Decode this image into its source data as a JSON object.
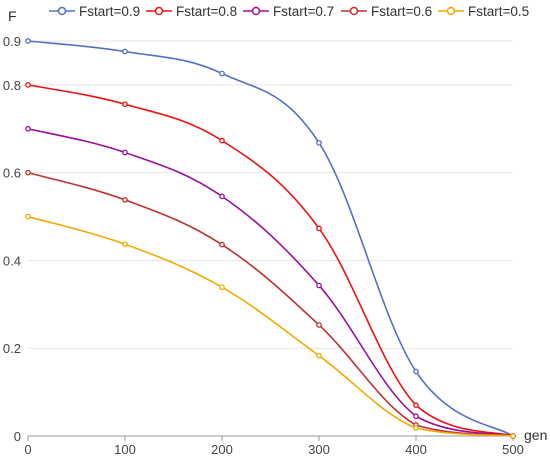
{
  "chart_data": {
    "type": "line",
    "xlabel": "gen",
    "ylabel": "F",
    "xlim": [
      0,
      500
    ],
    "ylim": [
      0,
      0.9
    ],
    "x_ticks": [
      "0",
      "100",
      "200",
      "300",
      "400",
      "500"
    ],
    "y_ticks": [
      "0",
      "0.2",
      "0.4",
      "0.6",
      "0.8",
      "0.9"
    ],
    "grid": true,
    "legend_position": "top",
    "x": [
      0,
      100,
      200,
      300,
      400,
      500
    ],
    "series": [
      {
        "name": "Fstart=0.9",
        "color": "#5470c6",
        "values": [
          0.9,
          0.876,
          0.826,
          0.668,
          0.147,
          0.0
        ]
      },
      {
        "name": "Fstart=0.8",
        "color": "#ee1111",
        "values": [
          0.8,
          0.756,
          0.673,
          0.473,
          0.07,
          0.0
        ]
      },
      {
        "name": "Fstart=0.7",
        "color": "#9a0f9a",
        "values": [
          0.7,
          0.646,
          0.546,
          0.343,
          0.045,
          0.0
        ]
      },
      {
        "name": "Fstart=0.6",
        "color": "#c03030",
        "values": [
          0.6,
          0.538,
          0.436,
          0.253,
          0.025,
          0.0
        ]
      },
      {
        "name": "Fstart=0.5",
        "color": "#f2a900",
        "values": [
          0.5,
          0.437,
          0.339,
          0.183,
          0.018,
          0.0
        ]
      }
    ]
  }
}
